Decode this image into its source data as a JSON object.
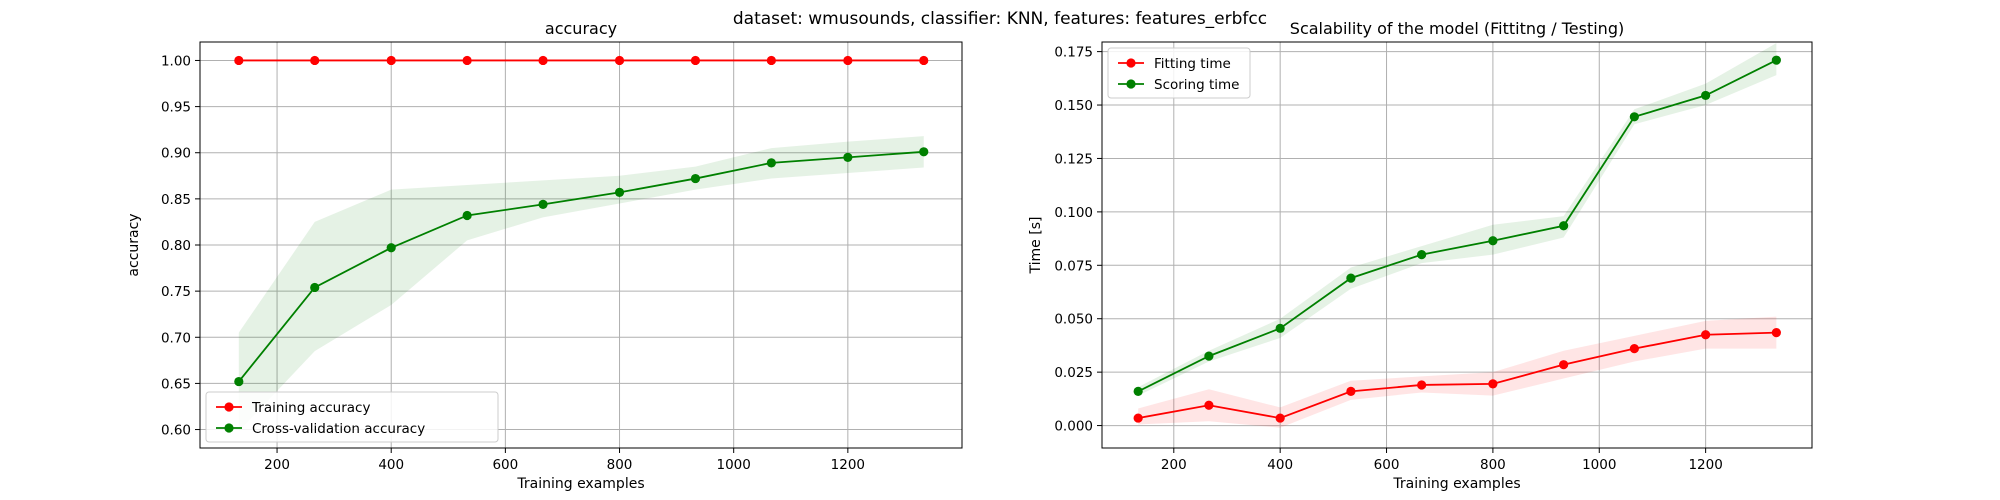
{
  "figure": {
    "suptitle": "dataset: wmusounds, classifier: KNN, features: features_erbfcc"
  },
  "colors": {
    "train": "#ff0000",
    "cv": "#008000",
    "grid": "#b0b0b0"
  },
  "chart_data": [
    {
      "type": "line",
      "title": "accuracy",
      "xlabel": "Training examples",
      "ylabel": "accuracy",
      "xlim": [
        65,
        1400
      ],
      "ylim": [
        0.58,
        1.02
      ],
      "xticks": [
        200,
        400,
        600,
        800,
        1000,
        1200
      ],
      "yticks": [
        0.6,
        0.65,
        0.7,
        0.75,
        0.8,
        0.85,
        0.9,
        0.95,
        1.0
      ],
      "ytick_labels": [
        "0.60",
        "0.65",
        "0.70",
        "0.75",
        "0.80",
        "0.85",
        "0.90",
        "0.95",
        "1.00"
      ],
      "grid": true,
      "legend": "lower-left",
      "x": [
        133,
        266,
        400,
        533,
        666,
        800,
        933,
        1066,
        1200,
        1333
      ],
      "series": [
        {
          "name": "Training accuracy",
          "color": "#ff0000",
          "values": [
            1.0,
            1.0,
            1.0,
            1.0,
            1.0,
            1.0,
            1.0,
            1.0,
            1.0,
            1.0
          ],
          "lower": [
            1.0,
            1.0,
            1.0,
            1.0,
            1.0,
            1.0,
            1.0,
            1.0,
            1.0,
            1.0
          ],
          "upper": [
            1.0,
            1.0,
            1.0,
            1.0,
            1.0,
            1.0,
            1.0,
            1.0,
            1.0,
            1.0
          ]
        },
        {
          "name": "Cross-validation accuracy",
          "color": "#008000",
          "values": [
            0.652,
            0.754,
            0.797,
            0.832,
            0.844,
            0.857,
            0.872,
            0.889,
            0.895,
            0.901
          ],
          "lower": [
            0.598,
            0.685,
            0.735,
            0.805,
            0.83,
            0.845,
            0.86,
            0.872,
            0.878,
            0.884
          ],
          "upper": [
            0.705,
            0.825,
            0.86,
            0.865,
            0.87,
            0.875,
            0.885,
            0.905,
            0.912,
            0.918
          ]
        }
      ]
    },
    {
      "type": "line",
      "title": "Scalability of the model (Fittitng / Testing)",
      "xlabel": "Training examples",
      "ylabel": "Time [s]",
      "xlim": [
        65,
        1400
      ],
      "ylim": [
        -0.0105,
        0.1795
      ],
      "xticks": [
        200,
        400,
        600,
        800,
        1000,
        1200
      ],
      "yticks": [
        0.0,
        0.025,
        0.05,
        0.075,
        0.1,
        0.125,
        0.15,
        0.175
      ],
      "ytick_labels": [
        "0.000",
        "0.025",
        "0.050",
        "0.075",
        "0.100",
        "0.125",
        "0.150",
        "0.175"
      ],
      "grid": true,
      "legend": "upper-left",
      "x": [
        133,
        266,
        400,
        533,
        666,
        800,
        933,
        1066,
        1200,
        1333
      ],
      "series": [
        {
          "name": "Fitting time",
          "color": "#ff0000",
          "values": [
            0.0035,
            0.0095,
            0.0035,
            0.016,
            0.019,
            0.0195,
            0.0285,
            0.036,
            0.0425,
            0.0435
          ],
          "lower": [
            0.0005,
            0.002,
            -0.001,
            0.012,
            0.0155,
            0.014,
            0.022,
            0.03,
            0.036,
            0.036
          ],
          "upper": [
            0.008,
            0.017,
            0.0085,
            0.021,
            0.023,
            0.025,
            0.035,
            0.042,
            0.049,
            0.051
          ]
        },
        {
          "name": "Scoring time",
          "color": "#008000",
          "values": [
            0.016,
            0.0325,
            0.0455,
            0.069,
            0.08,
            0.0865,
            0.0935,
            0.1445,
            0.1545,
            0.171
          ],
          "lower": [
            0.014,
            0.03,
            0.041,
            0.064,
            0.076,
            0.08,
            0.088,
            0.141,
            0.15,
            0.164
          ],
          "upper": [
            0.018,
            0.035,
            0.05,
            0.074,
            0.084,
            0.094,
            0.098,
            0.148,
            0.16,
            0.179
          ]
        }
      ]
    }
  ]
}
